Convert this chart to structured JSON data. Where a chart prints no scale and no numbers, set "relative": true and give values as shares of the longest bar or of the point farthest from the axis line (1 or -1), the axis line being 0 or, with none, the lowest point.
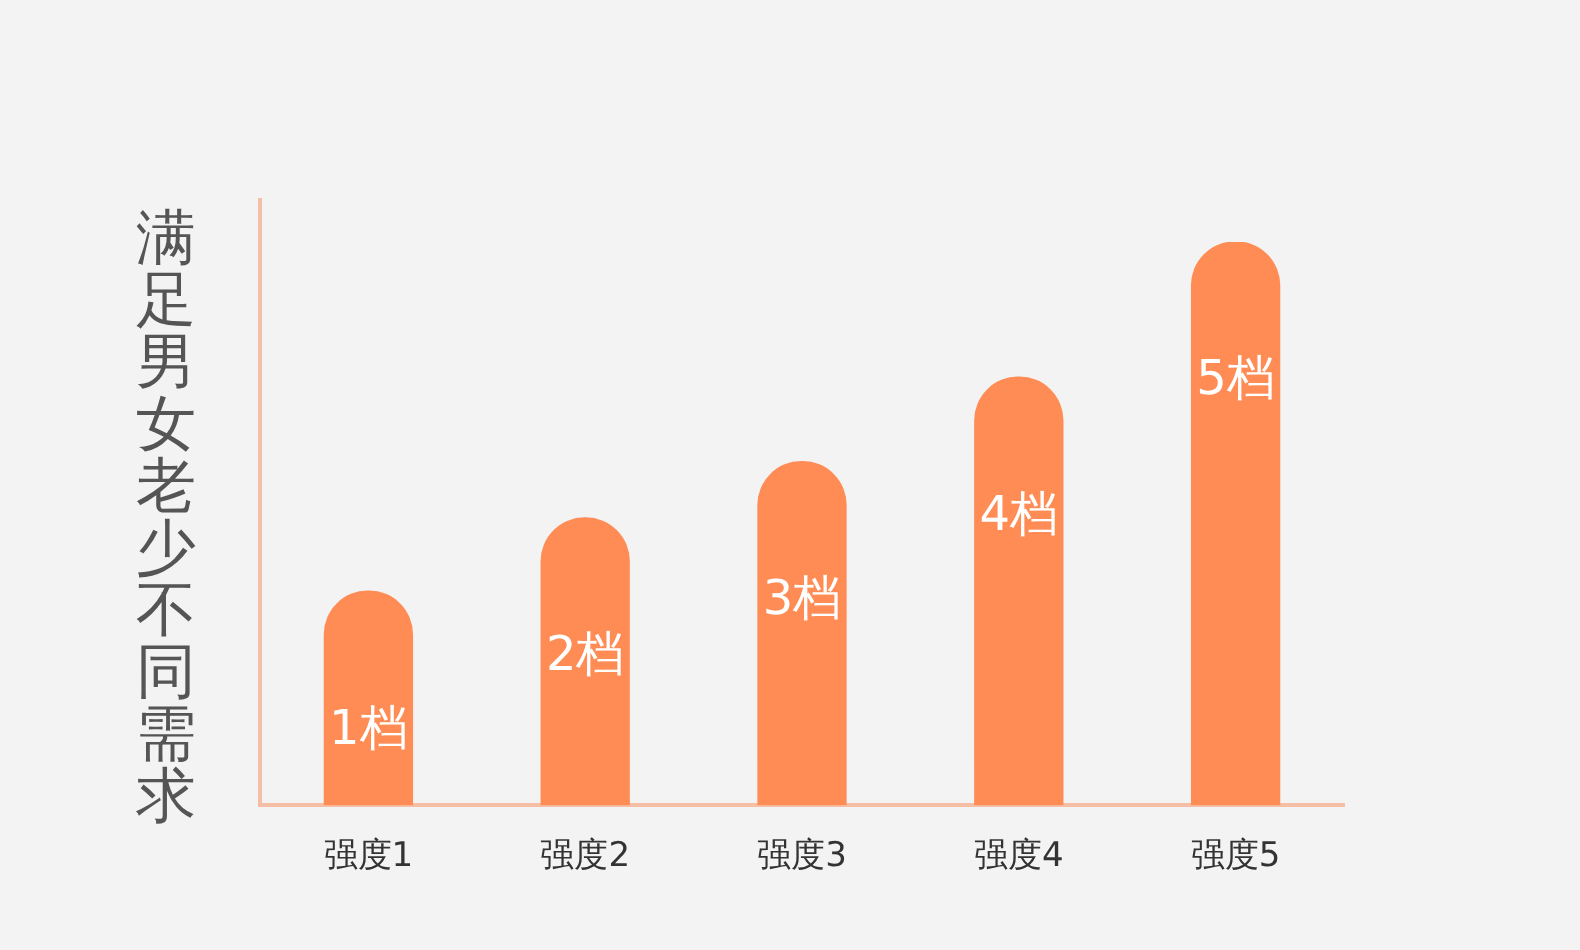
{
  "chart_data": {
    "type": "bar",
    "relative": true,
    "ylabel": "满足男女老少不同需求",
    "categories": [
      "强度1",
      "强度2",
      "强度3",
      "强度4",
      "强度5"
    ],
    "series": [
      {
        "color": "#ff8c55",
        "values": [
          0.38,
          0.51,
          0.61,
          0.76,
          1
        ]
      }
    ],
    "annotations": [
      "1档",
      "2档",
      "3档",
      "4档",
      "5档"
    ],
    "grid": false,
    "legend": false
  }
}
